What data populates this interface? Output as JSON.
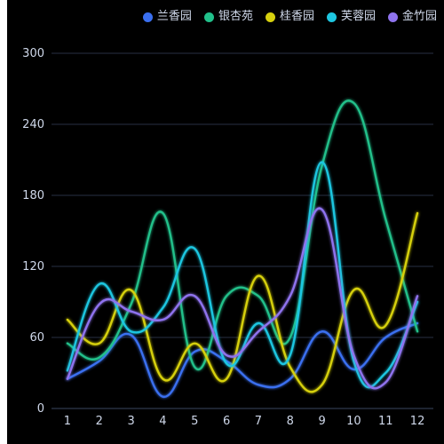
{
  "colors": {
    "background": "#000000",
    "grid": "#273044",
    "axis": "#3a4660",
    "tick_text": "#cfd8ea"
  },
  "chart_data": {
    "type": "line",
    "smooth": true,
    "legend_position": "top-right",
    "grid": true,
    "categories": [
      "1",
      "2",
      "3",
      "4",
      "5",
      "6",
      "7",
      "8",
      "9",
      "10",
      "11",
      "12"
    ],
    "y_ticks": [
      "0",
      "60",
      "120",
      "180",
      "240",
      "300"
    ],
    "ylim": [
      0,
      300
    ],
    "series": [
      {
        "name": "兰香园",
        "color": "#3a6ff0",
        "values": [
          25,
          40,
          62,
          10,
          48,
          40,
          20,
          25,
          65,
          33,
          60,
          72
        ]
      },
      {
        "name": "银杏苑",
        "color": "#21c08a",
        "values": [
          55,
          43,
          88,
          165,
          35,
          95,
          95,
          60,
          205,
          258,
          160,
          65
        ]
      },
      {
        "name": "桂香园",
        "color": "#d6d00e",
        "values": [
          75,
          55,
          100,
          25,
          55,
          25,
          112,
          35,
          20,
          100,
          70,
          165
        ]
      },
      {
        "name": "芙蓉园",
        "color": "#1ec6e0",
        "values": [
          32,
          105,
          65,
          85,
          135,
          38,
          72,
          45,
          208,
          40,
          30,
          90
        ]
      },
      {
        "name": "金竹园",
        "color": "#8f73ee",
        "values": [
          25,
          88,
          82,
          75,
          95,
          45,
          65,
          95,
          168,
          45,
          22,
          95
        ]
      }
    ]
  }
}
